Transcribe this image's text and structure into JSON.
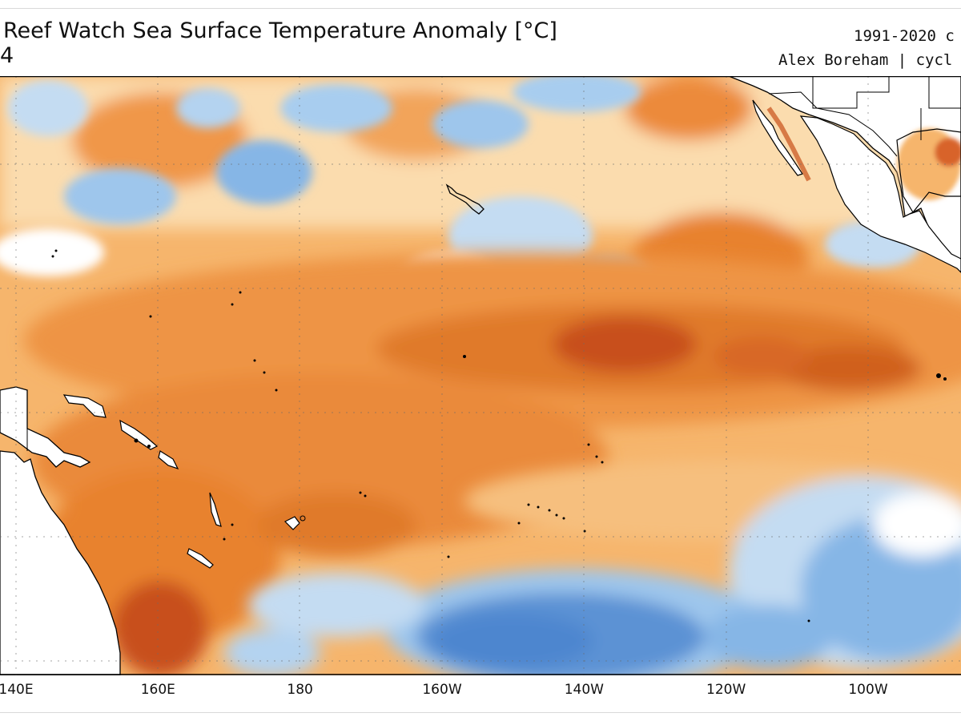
{
  "header": {
    "title": "Reef Watch Sea Surface Temperature Anomaly [°C]",
    "subtitle": "4",
    "credit_line1": "1991-2020 c",
    "credit_line2": "Alex Boreham | cycl"
  },
  "map": {
    "variable": "Sea Surface Temperature Anomaly",
    "units": "°C",
    "colors": {
      "strong_warm": "#c8501a",
      "warm": "#e8822f",
      "mild_warm": "#f5b56a",
      "slight_warm": "#fbe0b4",
      "neutral": "#ffffff",
      "slight_cool": "#c4dcf2",
      "cool": "#86b6e6",
      "strong_cool": "#4d86cf",
      "land": "#ffffff",
      "coastline": "#000000",
      "graticule": "#6a6a6a"
    },
    "graticule": "dotted",
    "x_axis": {
      "ticks": [
        {
          "label": "140E",
          "lon": 140
        },
        {
          "label": "160E",
          "lon": 160
        },
        {
          "label": "180",
          "lon": 180
        },
        {
          "label": "160W",
          "lon": 200
        },
        {
          "label": "140W",
          "lon": 220
        },
        {
          "label": "120W",
          "lon": 240
        },
        {
          "label": "100W",
          "lon": 260
        }
      ]
    },
    "regions": [
      {
        "name": "northern-mixed-band",
        "anomaly": "slight warm and cool patches"
      },
      {
        "name": "equatorial-warm-band",
        "anomaly": "strong warm"
      },
      {
        "name": "southeast-cool-region",
        "anomaly": "cool"
      }
    ]
  }
}
